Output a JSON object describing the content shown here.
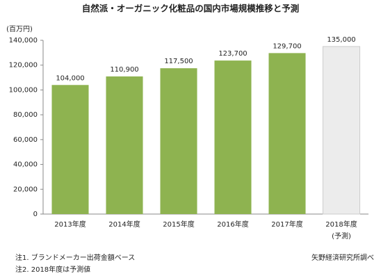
{
  "chart_data": {
    "type": "bar",
    "title": "自然派・オーガニック化粧品の国内市場規模推移と予測",
    "y_unit": "(百万円)",
    "categories": [
      "2013年度",
      "2014年度",
      "2015年度",
      "2016年度",
      "2017年度",
      "2018年度"
    ],
    "category_notes": [
      null,
      null,
      null,
      null,
      null,
      "(予測)"
    ],
    "values": [
      104000,
      110900,
      117500,
      123700,
      129700,
      135000
    ],
    "value_labels": [
      "104,000",
      "110,900",
      "117,500",
      "123,700",
      "129,700",
      "135,000"
    ],
    "colors": [
      "#8eb350",
      "#8eb350",
      "#8eb350",
      "#8eb350",
      "#8eb350",
      "#ececec"
    ],
    "ylim": [
      0,
      140000
    ],
    "yticks": [
      0,
      {
        "value": 20000,
        "label": "20,000"
      },
      {
        "value": 40000,
        "label": "40,000"
      },
      {
        "value": 60000,
        "label": "60,000"
      },
      {
        "value": 80000,
        "label": "80,000"
      },
      {
        "value": 100000,
        "label": "100,000"
      },
      {
        "value": 120000,
        "label": "120,000"
      },
      {
        "value": 140000,
        "label": "140,000"
      }
    ],
    "grid": false,
    "notes": [
      "注1. ブランドメーカー出荷金額ベース",
      "注2. 2018年度は予測値"
    ],
    "source": "矢野経済研究所調べ"
  }
}
